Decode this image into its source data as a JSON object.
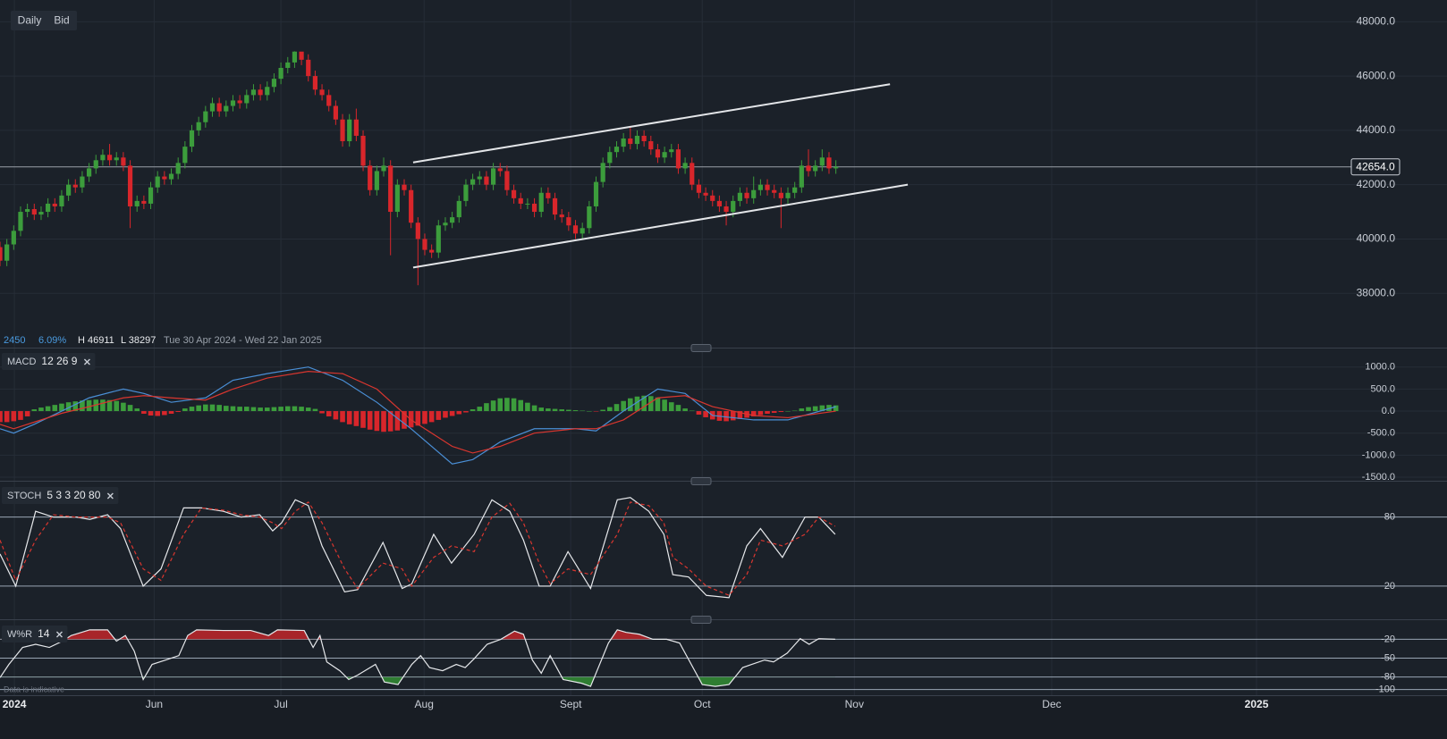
{
  "toolbar": {
    "buttons": [
      "Daily",
      "Bid"
    ]
  },
  "info": {
    "change": "2450",
    "change_pct": "6.09%",
    "high": "H 46911",
    "low": "L 38297",
    "range": "Tue 30 Apr 2024 - Wed 22 Jan 2025"
  },
  "footer_note": "Data is indicative",
  "chart_data": [
    {
      "type": "candlestick",
      "up_color": "#3c9d3c",
      "down_color": "#d8262b",
      "grid_color": "#262d37",
      "xlim": [
        0,
        211.2
      ],
      "xticks": [
        {
          "value": 2.1,
          "label": "2024"
        },
        {
          "value": 22.5,
          "label": "Jun"
        },
        {
          "value": 41,
          "label": "Jul"
        },
        {
          "value": 61.9,
          "label": "Aug"
        },
        {
          "value": 83.3,
          "label": "Sept"
        },
        {
          "value": 102.5,
          "label": "Oct"
        },
        {
          "value": 124.7,
          "label": "Nov"
        },
        {
          "value": 153.5,
          "label": "Dec"
        },
        {
          "value": 183.4,
          "label": "2025"
        }
      ],
      "ylim": [
        36000,
        48800
      ],
      "yticks": [
        {
          "value": 38000,
          "label": "38000.0"
        },
        {
          "value": 40000,
          "label": "40000.0"
        },
        {
          "value": 42000,
          "label": "42000.0"
        },
        {
          "value": 44000,
          "label": "44000.0"
        },
        {
          "value": 46000,
          "label": "46000.0"
        },
        {
          "value": 48000,
          "label": "48000.0"
        }
      ],
      "last_price": {
        "value": 42654,
        "label": "42654.0"
      },
      "trendlines": [
        {
          "x": [
            60.3,
            129.9
          ],
          "y": [
            42820,
            45700
          ]
        },
        {
          "x": [
            60.3,
            132.5
          ],
          "y": [
            38950,
            42000
          ]
        }
      ],
      "open": [
        39700,
        39200,
        39800,
        40300,
        41000,
        41100,
        40900,
        41000,
        41300,
        41200,
        41600,
        42000,
        41900,
        42300,
        42600,
        42900,
        43100,
        42900,
        43000,
        42700,
        41200,
        41400,
        41300,
        41900,
        42300,
        42200,
        42400,
        42800,
        43400,
        44000,
        44300,
        44700,
        45000,
        44700,
        44900,
        45100,
        45000,
        45300,
        45500,
        45300,
        45600,
        45900,
        46300,
        46500,
        46900,
        46600,
        46000,
        45500,
        45300,
        44900,
        44400,
        43600,
        44400,
        43800,
        42700,
        41800,
        42500,
        42700,
        41000,
        42000,
        41800,
        40600,
        40000,
        39600,
        39500,
        40500,
        40600,
        40800,
        41400,
        42000,
        42200,
        42300,
        42000,
        42600,
        42500,
        41800,
        41500,
        41300,
        41300,
        41000,
        41700,
        41500,
        40900,
        40800,
        40500,
        40200,
        40400,
        41200,
        42100,
        42800,
        43200,
        43400,
        43700,
        43500,
        43800,
        43600,
        43300,
        43000,
        43200,
        43300,
        42600,
        42800,
        42000,
        41700,
        41600,
        41400,
        41200,
        41000,
        41400,
        41700,
        41500,
        41800,
        42000,
        41800,
        41700,
        41500,
        41700,
        41900,
        42700,
        42500,
        42700,
        43000,
        42600
      ],
      "high": [
        39900,
        40000,
        40500,
        41200,
        41300,
        41300,
        41200,
        41500,
        41500,
        41800,
        42200,
        42200,
        42500,
        42800,
        43100,
        43300,
        43500,
        43200,
        43200,
        42900,
        41600,
        41600,
        42100,
        42500,
        42500,
        42600,
        43000,
        43600,
        44200,
        44500,
        44900,
        45200,
        45200,
        45100,
        45300,
        45300,
        45500,
        45700,
        45700,
        45800,
        46100,
        46500,
        46700,
        46911,
        46850,
        46800,
        46200,
        45700,
        45500,
        45100,
        44600,
        44600,
        44800,
        44000,
        42900,
        42700,
        43000,
        42900,
        42200,
        42200,
        42000,
        40800,
        40200,
        39800,
        40700,
        40800,
        41000,
        41600,
        42200,
        42400,
        42500,
        42500,
        42800,
        42800,
        42700,
        42000,
        41700,
        41500,
        41500,
        41900,
        41900,
        41700,
        41100,
        41000,
        40700,
        40600,
        41400,
        42300,
        43000,
        43400,
        43600,
        43900,
        44100,
        44000,
        44000,
        43800,
        43500,
        43400,
        43500,
        43500,
        43000,
        43000,
        42200,
        41900,
        41800,
        41600,
        41400,
        41600,
        41900,
        41900,
        42300,
        42200,
        42200,
        42000,
        41900,
        41900,
        42100,
        42900,
        43300,
        42900,
        43300,
        43200,
        42900
      ],
      "low": [
        39000,
        39000,
        39600,
        40100,
        40800,
        40700,
        40700,
        40800,
        41000,
        41000,
        41400,
        41700,
        41700,
        42100,
        42400,
        42700,
        42700,
        42700,
        42500,
        40400,
        41000,
        41100,
        41100,
        41700,
        42000,
        42000,
        42200,
        42600,
        43200,
        43800,
        44100,
        44500,
        44500,
        44500,
        44700,
        44800,
        44800,
        45100,
        45100,
        45100,
        45400,
        45700,
        46100,
        46300,
        46400,
        45800,
        45300,
        45100,
        44700,
        44200,
        43400,
        43400,
        43600,
        42500,
        41600,
        41600,
        42300,
        39400,
        40800,
        41600,
        40400,
        38297,
        39400,
        39300,
        39300,
        40300,
        40400,
        40600,
        41200,
        41800,
        42000,
        41800,
        41800,
        42300,
        41600,
        41300,
        41100,
        41100,
        40800,
        40800,
        41300,
        40700,
        40600,
        40300,
        40000,
        40000,
        40200,
        41000,
        41900,
        42600,
        43000,
        43200,
        43300,
        43300,
        43400,
        43100,
        42800,
        42800,
        43000,
        42400,
        42400,
        41800,
        41500,
        41400,
        41200,
        41000,
        40500,
        40800,
        41200,
        41300,
        41300,
        41600,
        41600,
        41500,
        40400,
        41300,
        41500,
        41700,
        42300,
        42300,
        42500,
        42400,
        42400
      ],
      "close": [
        39200,
        39800,
        40300,
        41000,
        41100,
        40900,
        41000,
        41300,
        41200,
        41600,
        42000,
        41900,
        42300,
        42600,
        42900,
        43100,
        42900,
        43000,
        42700,
        41200,
        41400,
        41300,
        41900,
        42300,
        42200,
        42400,
        42800,
        43400,
        44000,
        44300,
        44700,
        45000,
        44700,
        44900,
        45100,
        45000,
        45300,
        45500,
        45300,
        45600,
        45900,
        46300,
        46500,
        46900,
        46600,
        46000,
        45500,
        45300,
        44900,
        44400,
        43600,
        44400,
        43800,
        42700,
        41800,
        42500,
        42700,
        41000,
        42000,
        41800,
        40600,
        40000,
        39600,
        39500,
        40500,
        40600,
        40800,
        41400,
        42000,
        42200,
        42300,
        42000,
        42600,
        42500,
        41800,
        41500,
        41300,
        41300,
        41000,
        41700,
        41500,
        40900,
        40800,
        40500,
        40200,
        40400,
        41200,
        42100,
        42800,
        43200,
        43400,
        43700,
        43500,
        43800,
        43600,
        43300,
        43000,
        43200,
        43300,
        42600,
        42800,
        42000,
        41700,
        41600,
        41400,
        41200,
        41000,
        41400,
        41700,
        41500,
        41800,
        42000,
        41800,
        41700,
        41500,
        41700,
        41900,
        42700,
        42500,
        42700,
        43000,
        42600,
        42654
      ]
    },
    {
      "type": "macd",
      "title": "MACD",
      "params": "12 26 9",
      "up_color": "#3c9d3c",
      "down_color": "#d8262b",
      "grid_color": "#262d37",
      "ylim": [
        -1560,
        1420
      ],
      "yticks": [
        {
          "value": 1000,
          "label": "1000.0"
        },
        {
          "value": 500,
          "label": "500.0"
        },
        {
          "value": 0,
          "label": "0.0"
        },
        {
          "value": -500,
          "label": "-500.0"
        },
        {
          "value": -1000,
          "label": "-1000.0"
        },
        {
          "value": -1500,
          "label": "-1500.0"
        }
      ],
      "histogram": [
        -250,
        -250,
        -230,
        -200,
        -120,
        40,
        80,
        110,
        140,
        170,
        200,
        220,
        240,
        250,
        260,
        260,
        250,
        230,
        190,
        140,
        60,
        -60,
        -100,
        -110,
        -90,
        -60,
        -20,
        60,
        100,
        130,
        150,
        150,
        140,
        120,
        110,
        100,
        100,
        90,
        80,
        80,
        90,
        100,
        110,
        110,
        100,
        80,
        50,
        -50,
        -120,
        -190,
        -250,
        -300,
        -340,
        -380,
        -420,
        -450,
        -470,
        -460,
        -440,
        -400,
        -370,
        -330,
        -290,
        -250,
        -200,
        -150,
        -110,
        -70,
        -30,
        40,
        100,
        180,
        240,
        290,
        300,
        290,
        250,
        190,
        130,
        80,
        60,
        50,
        40,
        30,
        20,
        10,
        0,
        -10,
        30,
        90,
        160,
        230,
        290,
        330,
        350,
        340,
        310,
        260,
        200,
        140,
        60,
        10,
        -80,
        -140,
        -190,
        -220,
        -230,
        -210,
        -180,
        -150,
        -120,
        -90,
        -60,
        -40,
        -20,
        0,
        10,
        60,
        90,
        110,
        130,
        140,
        130
      ],
      "x": [
        0,
        2,
        5,
        9,
        13,
        18,
        21,
        25,
        30,
        34,
        39,
        45,
        50,
        55,
        60,
        66,
        69,
        73,
        78,
        84,
        87,
        91,
        96,
        100,
        104,
        110,
        115,
        122
      ],
      "lines": [
        {
          "color": "#4a8fd6",
          "values": [
            -400,
            -500,
            -300,
            0,
            300,
            500,
            400,
            200,
            300,
            700,
            850,
            1000,
            700,
            200,
            -400,
            -1200,
            -1100,
            -700,
            -400,
            -400,
            -450,
            0,
            500,
            400,
            -100,
            -200,
            -200,
            100
          ]
        },
        {
          "color": "#d9362f",
          "values": [
            -300,
            -400,
            -250,
            -50,
            100,
            300,
            350,
            300,
            250,
            500,
            750,
            900,
            850,
            500,
            -200,
            -800,
            -950,
            -800,
            -500,
            -400,
            -400,
            -200,
            300,
            350,
            100,
            -100,
            -150,
            0
          ]
        }
      ]
    },
    {
      "type": "stochastic",
      "title": "STOCH",
      "params": "5 3 3 20 80",
      "grid_color": "#b9c6d6",
      "ylim": [
        -8,
        110
      ],
      "yticks": [
        80,
        20
      ],
      "x": [
        0,
        2.3,
        5.2,
        7.8,
        11.1,
        13.1,
        15.7,
        17.6,
        20.9,
        23.5,
        26.8,
        29.4,
        32.6,
        35.2,
        37.9,
        39.8,
        41.1,
        43.1,
        45,
        47,
        50.3,
        52.2,
        55.9,
        58.7,
        60.1,
        63.3,
        65.9,
        69.2,
        71.8,
        74.4,
        76.4,
        78.7,
        80.3,
        82.9,
        86.2,
        90.1,
        92,
        94.7,
        96.9,
        98.2,
        100.5,
        103.1,
        106.4,
        109,
        111,
        114.2,
        117.5,
        119.5,
        121.9
      ],
      "lines": [
        {
          "color": "#e6e8eb",
          "values": [
            48,
            20,
            85,
            80,
            80,
            78,
            82,
            70,
            20,
            35,
            88,
            88,
            85,
            80,
            82,
            68,
            75,
            95,
            90,
            55,
            15,
            17,
            58,
            18,
            22,
            65,
            40,
            65,
            95,
            85,
            60,
            20,
            20,
            50,
            18,
            95,
            97,
            85,
            65,
            30,
            28,
            12,
            10,
            55,
            70,
            45,
            80,
            80,
            65
          ]
        },
        {
          "color": "#d9362f",
          "dash": true,
          "values": [
            60,
            25,
            60,
            82,
            80,
            80,
            80,
            75,
            35,
            25,
            65,
            88,
            86,
            82,
            80,
            75,
            70,
            85,
            93,
            75,
            35,
            18,
            40,
            35,
            20,
            45,
            55,
            50,
            80,
            92,
            75,
            40,
            22,
            35,
            30,
            65,
            93,
            90,
            75,
            45,
            35,
            20,
            12,
            30,
            60,
            55,
            65,
            80,
            72
          ]
        }
      ]
    },
    {
      "type": "williams",
      "title": "W%R",
      "params": "14",
      "grid_color": "#b9c6d6",
      "overbought_color": "#a8252a",
      "oversold_color": "#2f7d32",
      "ylim": [
        -109,
        9
      ],
      "yticks": [
        -20,
        -50,
        -80,
        -100
      ],
      "x": [
        0,
        1.3,
        3.3,
        5.2,
        7.2,
        9.1,
        10.4,
        13.1,
        15.7,
        17,
        18.3,
        19.6,
        20.9,
        22.2,
        24.2,
        26.1,
        27.4,
        28.7,
        32.6,
        36.6,
        39.2,
        40.5,
        44.4,
        45.7,
        46.7,
        47.7,
        49.6,
        50.9,
        52.2,
        54.8,
        56.1,
        58.1,
        60.1,
        61.4,
        62.7,
        64.6,
        66.6,
        67.9,
        69.2,
        71.1,
        73.1,
        75.1,
        76.4,
        77.7,
        79,
        80.3,
        82.2,
        84.9,
        86.2,
        88.8,
        90.1,
        91.4,
        93.3,
        95.3,
        97.3,
        99.2,
        102.5,
        104.4,
        106.4,
        108.4,
        109.7,
        111.6,
        112.9,
        114.9,
        116.8,
        118.1,
        119.5,
        121.9
      ],
      "color": "#e6e8eb",
      "values": [
        -81,
        -60,
        -33,
        -28,
        -33,
        -23,
        -14,
        -5,
        -5,
        -23,
        -14,
        -39,
        -84,
        -60,
        -53,
        -46,
        -14,
        -5,
        -6,
        -6,
        -14,
        -5,
        -6,
        -33,
        -14,
        -56,
        -70,
        -84,
        -77,
        -60,
        -88,
        -92,
        -60,
        -46,
        -65,
        -70,
        -60,
        -65,
        -51,
        -28,
        -20,
        -7,
        -12,
        -53,
        -74,
        -46,
        -84,
        -90,
        -95,
        -26,
        -5,
        -9,
        -12,
        -20,
        -20,
        -26,
        -92,
        -95,
        -92,
        -65,
        -60,
        -53,
        -56,
        -42,
        -19,
        -28,
        -19,
        -20
      ]
    }
  ]
}
